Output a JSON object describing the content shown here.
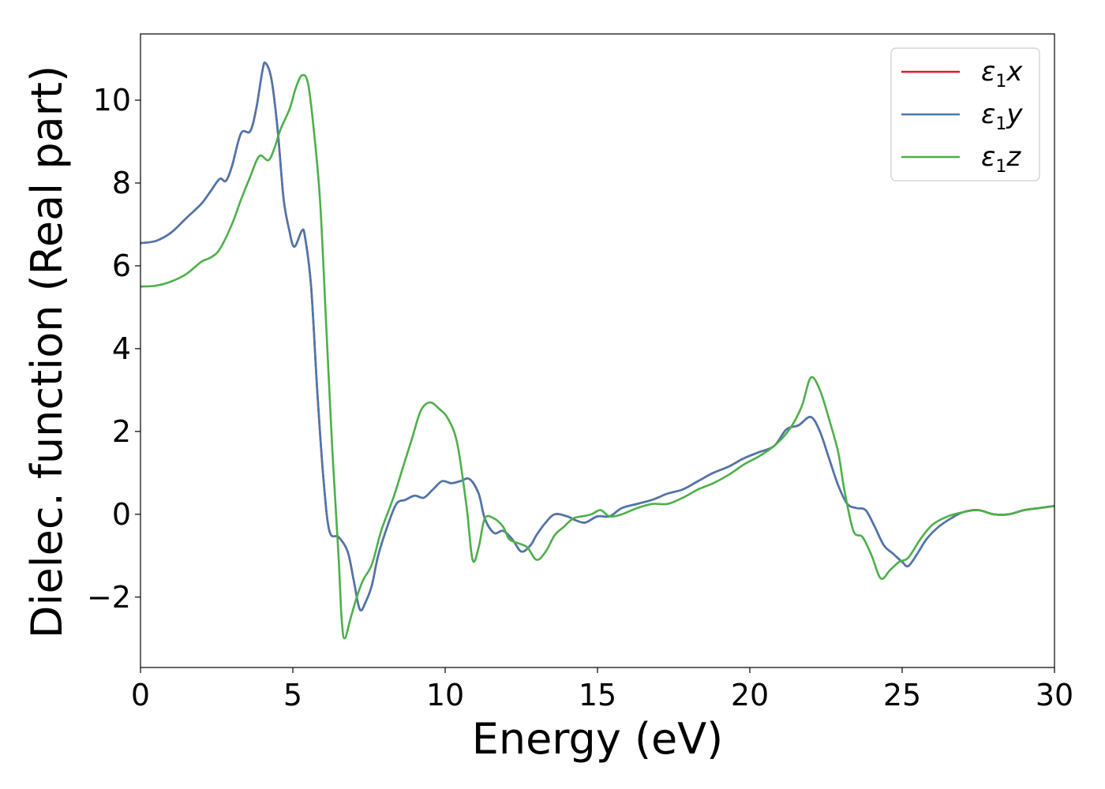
{
  "chart_data": {
    "type": "line",
    "title": "",
    "xlabel": "Energy (eV)",
    "ylabel": "Dielec. function (Real part)",
    "xlim": [
      0,
      30
    ],
    "ylim": [
      -3.7,
      11.6
    ],
    "xticks": [
      0,
      5,
      10,
      15,
      20,
      25,
      30
    ],
    "xtick_labels": [
      "0",
      "5",
      "10",
      "15",
      "20",
      "25",
      "30"
    ],
    "yticks": [
      -2,
      0,
      2,
      4,
      6,
      8,
      10
    ],
    "ytick_labels": [
      "−2",
      "0",
      "2",
      "4",
      "6",
      "8",
      "10"
    ],
    "grid": false,
    "legend_position": "top-right",
    "series": [
      {
        "name": "ε1x",
        "legend_main": "ε",
        "legend_sub": "1",
        "legend_var": "x",
        "color": "#e41a1c",
        "points": [
          [
            0,
            6.55
          ],
          [
            0.5,
            6.6
          ],
          [
            1,
            6.8
          ],
          [
            1.5,
            7.15
          ],
          [
            2,
            7.5
          ],
          [
            2.3,
            7.8
          ],
          [
            2.6,
            8.1
          ],
          [
            2.8,
            8.05
          ],
          [
            3.0,
            8.4
          ],
          [
            3.3,
            9.2
          ],
          [
            3.6,
            9.25
          ],
          [
            3.8,
            9.8
          ],
          [
            4.0,
            10.7
          ],
          [
            4.1,
            10.9
          ],
          [
            4.3,
            10.5
          ],
          [
            4.5,
            9.3
          ],
          [
            4.7,
            7.6
          ],
          [
            4.9,
            6.8
          ],
          [
            5.0,
            6.5
          ],
          [
            5.1,
            6.5
          ],
          [
            5.3,
            6.85
          ],
          [
            5.4,
            6.7
          ],
          [
            5.6,
            5.5
          ],
          [
            5.8,
            3.0
          ],
          [
            6.0,
            0.9
          ],
          [
            6.2,
            -0.4
          ],
          [
            6.5,
            -0.55
          ],
          [
            6.8,
            -0.9
          ],
          [
            7.0,
            -1.6
          ],
          [
            7.2,
            -2.3
          ],
          [
            7.4,
            -2.1
          ],
          [
            7.6,
            -1.7
          ],
          [
            7.8,
            -1.0
          ],
          [
            8.1,
            -0.3
          ],
          [
            8.4,
            0.25
          ],
          [
            8.7,
            0.35
          ],
          [
            9.0,
            0.45
          ],
          [
            9.3,
            0.4
          ],
          [
            9.6,
            0.6
          ],
          [
            9.9,
            0.8
          ],
          [
            10.2,
            0.75
          ],
          [
            10.5,
            0.8
          ],
          [
            10.8,
            0.85
          ],
          [
            11.1,
            0.5
          ],
          [
            11.3,
            -0.1
          ],
          [
            11.6,
            -0.45
          ],
          [
            11.9,
            -0.4
          ],
          [
            12.2,
            -0.6
          ],
          [
            12.5,
            -0.9
          ],
          [
            12.8,
            -0.75
          ],
          [
            13.0,
            -0.5
          ],
          [
            13.3,
            -0.2
          ],
          [
            13.6,
            0.0
          ],
          [
            14.0,
            -0.05
          ],
          [
            14.3,
            -0.15
          ],
          [
            14.6,
            -0.2
          ],
          [
            15.0,
            -0.05
          ],
          [
            15.4,
            -0.05
          ],
          [
            15.8,
            0.15
          ],
          [
            16.3,
            0.25
          ],
          [
            16.8,
            0.35
          ],
          [
            17.3,
            0.5
          ],
          [
            17.8,
            0.6
          ],
          [
            18.3,
            0.8
          ],
          [
            18.8,
            1.0
          ],
          [
            19.3,
            1.15
          ],
          [
            19.8,
            1.35
          ],
          [
            20.3,
            1.5
          ],
          [
            20.8,
            1.65
          ],
          [
            21.2,
            2.05
          ],
          [
            21.6,
            2.15
          ],
          [
            22.0,
            2.35
          ],
          [
            22.3,
            2.0
          ],
          [
            22.6,
            1.35
          ],
          [
            22.9,
            0.7
          ],
          [
            23.2,
            0.25
          ],
          [
            23.5,
            0.15
          ],
          [
            23.8,
            0.1
          ],
          [
            24.1,
            -0.3
          ],
          [
            24.4,
            -0.75
          ],
          [
            24.7,
            -0.95
          ],
          [
            25.0,
            -1.15
          ],
          [
            25.2,
            -1.25
          ],
          [
            25.5,
            -0.95
          ],
          [
            25.8,
            -0.6
          ],
          [
            26.2,
            -0.3
          ],
          [
            26.6,
            -0.1
          ],
          [
            27.0,
            0.05
          ],
          [
            27.5,
            0.1
          ],
          [
            28.0,
            0.0
          ],
          [
            28.5,
            0.0
          ],
          [
            29.0,
            0.1
          ],
          [
            29.5,
            0.15
          ],
          [
            30.0,
            0.2
          ]
        ]
      },
      {
        "name": "ε1y",
        "legend_main": "ε",
        "legend_sub": "1",
        "legend_var": "y",
        "color": "#4a77ad",
        "points": [
          [
            0,
            6.55
          ],
          [
            0.5,
            6.6
          ],
          [
            1,
            6.8
          ],
          [
            1.5,
            7.15
          ],
          [
            2,
            7.5
          ],
          [
            2.3,
            7.8
          ],
          [
            2.6,
            8.1
          ],
          [
            2.8,
            8.05
          ],
          [
            3.0,
            8.4
          ],
          [
            3.3,
            9.2
          ],
          [
            3.6,
            9.25
          ],
          [
            3.8,
            9.8
          ],
          [
            4.0,
            10.7
          ],
          [
            4.1,
            10.9
          ],
          [
            4.3,
            10.5
          ],
          [
            4.5,
            9.3
          ],
          [
            4.7,
            7.6
          ],
          [
            4.9,
            6.8
          ],
          [
            5.0,
            6.5
          ],
          [
            5.1,
            6.5
          ],
          [
            5.3,
            6.85
          ],
          [
            5.4,
            6.7
          ],
          [
            5.6,
            5.5
          ],
          [
            5.8,
            3.0
          ],
          [
            6.0,
            0.9
          ],
          [
            6.2,
            -0.4
          ],
          [
            6.5,
            -0.55
          ],
          [
            6.8,
            -0.9
          ],
          [
            7.0,
            -1.6
          ],
          [
            7.2,
            -2.3
          ],
          [
            7.4,
            -2.1
          ],
          [
            7.6,
            -1.7
          ],
          [
            7.8,
            -1.0
          ],
          [
            8.1,
            -0.3
          ],
          [
            8.4,
            0.25
          ],
          [
            8.7,
            0.35
          ],
          [
            9.0,
            0.45
          ],
          [
            9.3,
            0.4
          ],
          [
            9.6,
            0.6
          ],
          [
            9.9,
            0.8
          ],
          [
            10.2,
            0.75
          ],
          [
            10.5,
            0.8
          ],
          [
            10.8,
            0.85
          ],
          [
            11.1,
            0.5
          ],
          [
            11.3,
            -0.1
          ],
          [
            11.6,
            -0.45
          ],
          [
            11.9,
            -0.4
          ],
          [
            12.2,
            -0.6
          ],
          [
            12.5,
            -0.9
          ],
          [
            12.8,
            -0.75
          ],
          [
            13.0,
            -0.5
          ],
          [
            13.3,
            -0.2
          ],
          [
            13.6,
            0.0
          ],
          [
            14.0,
            -0.05
          ],
          [
            14.3,
            -0.15
          ],
          [
            14.6,
            -0.2
          ],
          [
            15.0,
            -0.05
          ],
          [
            15.4,
            -0.05
          ],
          [
            15.8,
            0.15
          ],
          [
            16.3,
            0.25
          ],
          [
            16.8,
            0.35
          ],
          [
            17.3,
            0.5
          ],
          [
            17.8,
            0.6
          ],
          [
            18.3,
            0.8
          ],
          [
            18.8,
            1.0
          ],
          [
            19.3,
            1.15
          ],
          [
            19.8,
            1.35
          ],
          [
            20.3,
            1.5
          ],
          [
            20.8,
            1.65
          ],
          [
            21.2,
            2.05
          ],
          [
            21.6,
            2.15
          ],
          [
            22.0,
            2.35
          ],
          [
            22.3,
            2.0
          ],
          [
            22.6,
            1.35
          ],
          [
            22.9,
            0.7
          ],
          [
            23.2,
            0.25
          ],
          [
            23.5,
            0.15
          ],
          [
            23.8,
            0.1
          ],
          [
            24.1,
            -0.3
          ],
          [
            24.4,
            -0.75
          ],
          [
            24.7,
            -0.95
          ],
          [
            25.0,
            -1.15
          ],
          [
            25.2,
            -1.25
          ],
          [
            25.5,
            -0.95
          ],
          [
            25.8,
            -0.6
          ],
          [
            26.2,
            -0.3
          ],
          [
            26.6,
            -0.1
          ],
          [
            27.0,
            0.05
          ],
          [
            27.5,
            0.1
          ],
          [
            28.0,
            0.0
          ],
          [
            28.5,
            0.0
          ],
          [
            29.0,
            0.1
          ],
          [
            29.5,
            0.15
          ],
          [
            30.0,
            0.2
          ]
        ]
      },
      {
        "name": "ε1z",
        "legend_main": "ε",
        "legend_sub": "1",
        "legend_var": "z",
        "color": "#4daf4a",
        "points": [
          [
            0,
            5.5
          ],
          [
            0.5,
            5.52
          ],
          [
            1,
            5.62
          ],
          [
            1.5,
            5.8
          ],
          [
            2.0,
            6.1
          ],
          [
            2.3,
            6.2
          ],
          [
            2.6,
            6.4
          ],
          [
            3.0,
            7.0
          ],
          [
            3.3,
            7.6
          ],
          [
            3.6,
            8.15
          ],
          [
            3.9,
            8.65
          ],
          [
            4.2,
            8.55
          ],
          [
            4.4,
            8.85
          ],
          [
            4.6,
            9.3
          ],
          [
            4.9,
            9.8
          ],
          [
            5.1,
            10.3
          ],
          [
            5.3,
            10.6
          ],
          [
            5.5,
            10.4
          ],
          [
            5.7,
            9.2
          ],
          [
            5.9,
            7.5
          ],
          [
            6.1,
            4.5
          ],
          [
            6.3,
            1.5
          ],
          [
            6.5,
            -1.0
          ],
          [
            6.6,
            -2.5
          ],
          [
            6.7,
            -3.0
          ],
          [
            6.9,
            -2.5
          ],
          [
            7.1,
            -2.0
          ],
          [
            7.3,
            -1.6
          ],
          [
            7.6,
            -1.2
          ],
          [
            7.9,
            -0.4
          ],
          [
            8.3,
            0.4
          ],
          [
            8.6,
            1.1
          ],
          [
            8.9,
            1.8
          ],
          [
            9.2,
            2.5
          ],
          [
            9.5,
            2.7
          ],
          [
            9.8,
            2.55
          ],
          [
            10.1,
            2.3
          ],
          [
            10.4,
            1.7
          ],
          [
            10.7,
            0.2
          ],
          [
            10.9,
            -1.1
          ],
          [
            11.1,
            -0.8
          ],
          [
            11.3,
            -0.1
          ],
          [
            11.6,
            -0.1
          ],
          [
            11.9,
            -0.3
          ],
          [
            12.1,
            -0.6
          ],
          [
            12.4,
            -0.7
          ],
          [
            12.7,
            -0.8
          ],
          [
            13.0,
            -1.1
          ],
          [
            13.3,
            -0.9
          ],
          [
            13.6,
            -0.5
          ],
          [
            13.9,
            -0.3
          ],
          [
            14.2,
            -0.1
          ],
          [
            14.5,
            -0.05
          ],
          [
            14.8,
            0.0
          ],
          [
            15.1,
            0.1
          ],
          [
            15.4,
            -0.05
          ],
          [
            15.8,
            0.0
          ],
          [
            16.3,
            0.15
          ],
          [
            16.8,
            0.25
          ],
          [
            17.3,
            0.25
          ],
          [
            17.8,
            0.4
          ],
          [
            18.3,
            0.6
          ],
          [
            18.8,
            0.75
          ],
          [
            19.3,
            0.95
          ],
          [
            19.8,
            1.2
          ],
          [
            20.3,
            1.4
          ],
          [
            20.8,
            1.65
          ],
          [
            21.3,
            2.05
          ],
          [
            21.7,
            2.6
          ],
          [
            22.0,
            3.3
          ],
          [
            22.3,
            3.0
          ],
          [
            22.6,
            2.3
          ],
          [
            22.9,
            1.5
          ],
          [
            23.1,
            0.6
          ],
          [
            23.4,
            -0.4
          ],
          [
            23.7,
            -0.55
          ],
          [
            24.0,
            -1.0
          ],
          [
            24.3,
            -1.55
          ],
          [
            24.6,
            -1.35
          ],
          [
            24.9,
            -1.15
          ],
          [
            25.2,
            -1.05
          ],
          [
            25.6,
            -0.6
          ],
          [
            26.0,
            -0.25
          ],
          [
            26.5,
            -0.05
          ],
          [
            27.0,
            0.05
          ],
          [
            27.5,
            0.1
          ],
          [
            28.0,
            0.0
          ],
          [
            28.5,
            0.0
          ],
          [
            29.0,
            0.1
          ],
          [
            29.5,
            0.15
          ],
          [
            30.0,
            0.2
          ]
        ]
      }
    ]
  }
}
